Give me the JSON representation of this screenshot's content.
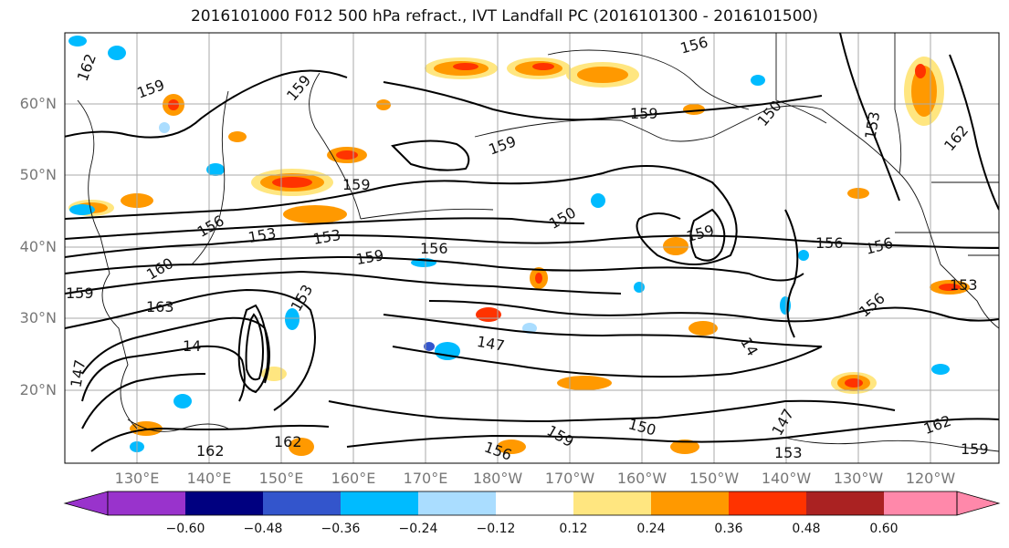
{
  "title": "2016101000 F012 500 hPa refract., IVT Landfall PC (2016101300 - 2016101500)",
  "lat_labels": [
    "60°N",
    "50°N",
    "40°N",
    "30°N",
    "20°N"
  ],
  "lon_labels": [
    "130°E",
    "140°E",
    "150°E",
    "160°E",
    "170°E",
    "180°W",
    "170°W",
    "160°W",
    "150°W",
    "140°W",
    "130°W",
    "120°W"
  ],
  "colorbar": {
    "colors": [
      "#9933cc",
      "#000080",
      "#3355cc",
      "#00bbff",
      "#aaddff",
      "#ffffff",
      "#ffe680",
      "#ff9900",
      "#ff3300",
      "#aa2222",
      "#ff88aa"
    ],
    "tick_labels": [
      "−0.60",
      "−0.48",
      "−0.36",
      "−0.24",
      "−0.12",
      "0.12",
      "0.24",
      "0.36",
      "0.48",
      "0.60"
    ]
  },
  "contour_labels": [
    "162",
    "159",
    "159",
    "156",
    "159",
    "150",
    "159",
    "153",
    "162",
    "159",
    "156",
    "153",
    "153",
    "156",
    "159",
    "156",
    "156",
    "150",
    "159",
    "160",
    "159",
    "163",
    "153",
    "147",
    "14",
    "14",
    "150",
    "147",
    "153",
    "162",
    "159",
    "162",
    "159",
    "156",
    "153",
    "162",
    "156",
    "147"
  ],
  "icons": {
    "colorbar_min_arrow": "triangle-left",
    "colorbar_max_arrow": "triangle-right"
  }
}
